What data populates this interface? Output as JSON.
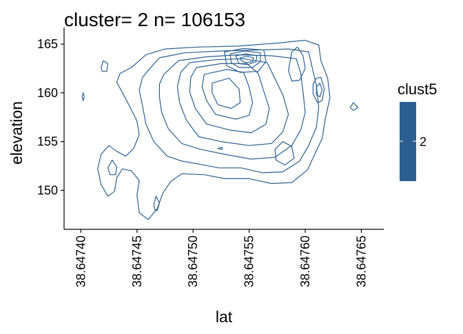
{
  "chart_data": {
    "type": "contour",
    "title": "cluster= 2 n= 106153",
    "xlabel": "lat",
    "ylabel": "elevation",
    "xlim": [
      38.647385,
      38.64767
    ],
    "ylim": [
      146,
      166.7
    ],
    "x_ticks": [
      "38.64740",
      "38.64745",
      "38.64750",
      "38.64755",
      "38.64760",
      "38.64765"
    ],
    "y_ticks": [
      "150",
      "155",
      "160",
      "165"
    ],
    "grid": false,
    "line_color": "#2b5f8f",
    "legend": {
      "title": "clust5",
      "label": "2",
      "color": "#2b5f8f",
      "position": "right"
    },
    "contours": [
      {
        "name": "outer-main",
        "points": [
          [
            38.647445,
            162.6
          ],
          [
            38.647458,
            163.9
          ],
          [
            38.647475,
            164.5
          ],
          [
            38.647505,
            164.7
          ],
          [
            38.64754,
            164.8
          ],
          [
            38.647575,
            165.1
          ],
          [
            38.6476,
            165.4
          ],
          [
            38.647612,
            164.9
          ],
          [
            38.647614,
            163.3
          ],
          [
            38.64762,
            161.5
          ],
          [
            38.647622,
            159.5
          ],
          [
            38.647618,
            157.4
          ],
          [
            38.647615,
            155.3
          ],
          [
            38.647608,
            153.6
          ],
          [
            38.647602,
            152.1
          ],
          [
            38.647588,
            150.8
          ],
          [
            38.64757,
            150.7
          ],
          [
            38.64755,
            151.2
          ],
          [
            38.647528,
            151.2
          ],
          [
            38.64751,
            151.6
          ],
          [
            38.64749,
            151.7
          ],
          [
            38.64748,
            150.9
          ],
          [
            38.647473,
            149.7
          ],
          [
            38.647468,
            148.1
          ],
          [
            38.64746,
            147.0
          ],
          [
            38.647452,
            147.7
          ],
          [
            38.64745,
            149.5
          ],
          [
            38.647452,
            151.0
          ],
          [
            38.647445,
            152.0
          ],
          [
            38.647437,
            152.2
          ],
          [
            38.647432,
            151.3
          ],
          [
            38.64743,
            149.9
          ],
          [
            38.647424,
            149.4
          ],
          [
            38.647418,
            150.6
          ],
          [
            38.647415,
            152.2
          ],
          [
            38.647418,
            153.7
          ],
          [
            38.647425,
            154.6
          ],
          [
            38.647432,
            154.0
          ],
          [
            38.64744,
            153.5
          ],
          [
            38.647447,
            154.3
          ],
          [
            38.647452,
            155.7
          ],
          [
            38.64745,
            157.1
          ],
          [
            38.647444,
            158.5
          ],
          [
            38.647438,
            159.8
          ],
          [
            38.647432,
            161.1
          ],
          [
            38.647435,
            162.0
          ]
        ]
      },
      {
        "name": "ring-2",
        "points": [
          [
            38.64746,
            162.3
          ],
          [
            38.64747,
            163.6
          ],
          [
            38.647492,
            164.1
          ],
          [
            38.647525,
            164.3
          ],
          [
            38.647558,
            164.4
          ],
          [
            38.647585,
            164.5
          ],
          [
            38.647603,
            164.2
          ],
          [
            38.647606,
            162.7
          ],
          [
            38.64761,
            160.7
          ],
          [
            38.647612,
            158.5
          ],
          [
            38.64761,
            156.5
          ],
          [
            38.647603,
            154.6
          ],
          [
            38.647595,
            153.0
          ],
          [
            38.64758,
            151.9
          ],
          [
            38.647562,
            151.8
          ],
          [
            38.647543,
            152.3
          ],
          [
            38.647523,
            152.3
          ],
          [
            38.647505,
            152.7
          ],
          [
            38.64749,
            153.0
          ],
          [
            38.647477,
            153.5
          ],
          [
            38.647465,
            155.0
          ],
          [
            38.647458,
            156.8
          ],
          [
            38.647455,
            158.6
          ],
          [
            38.647452,
            160.3
          ],
          [
            38.647455,
            161.6
          ]
        ]
      },
      {
        "name": "ring-3",
        "points": [
          [
            38.647474,
            161.9
          ],
          [
            38.647487,
            163.3
          ],
          [
            38.647512,
            163.7
          ],
          [
            38.64754,
            163.9
          ],
          [
            38.64757,
            163.8
          ],
          [
            38.647592,
            163.5
          ],
          [
            38.647596,
            162.0
          ],
          [
            38.647598,
            160.1
          ],
          [
            38.6476,
            158.0
          ],
          [
            38.647596,
            156.2
          ],
          [
            38.647588,
            154.6
          ],
          [
            38.647573,
            153.4
          ],
          [
            38.647552,
            153.2
          ],
          [
            38.647528,
            153.7
          ],
          [
            38.647507,
            154.2
          ],
          [
            38.64749,
            154.8
          ],
          [
            38.647478,
            156.3
          ],
          [
            38.647472,
            158.0
          ],
          [
            38.64747,
            159.6
          ],
          [
            38.64747,
            160.9
          ]
        ]
      },
      {
        "name": "ring-4",
        "points": [
          [
            38.647497,
            163.1
          ],
          [
            38.64752,
            163.4
          ],
          [
            38.647545,
            163.5
          ],
          [
            38.647566,
            163.1
          ],
          [
            38.647572,
            161.7
          ],
          [
            38.64758,
            159.8
          ],
          [
            38.647585,
            157.8
          ],
          [
            38.64758,
            156.0
          ],
          [
            38.64757,
            154.8
          ],
          [
            38.64755,
            154.6
          ],
          [
            38.647525,
            155.0
          ],
          [
            38.647505,
            155.5
          ],
          [
            38.647494,
            157.2
          ],
          [
            38.647488,
            159.0
          ],
          [
            38.647486,
            160.6
          ],
          [
            38.647489,
            162.1
          ]
        ]
      },
      {
        "name": "ring-5",
        "points": [
          [
            38.647503,
            162.6
          ],
          [
            38.647525,
            163.0
          ],
          [
            38.647548,
            163.0
          ],
          [
            38.647558,
            162.0
          ],
          [
            38.647563,
            160.2
          ],
          [
            38.647568,
            158.4
          ],
          [
            38.647565,
            156.8
          ],
          [
            38.647552,
            155.9
          ],
          [
            38.647532,
            156.2
          ],
          [
            38.647512,
            156.8
          ],
          [
            38.647502,
            158.4
          ],
          [
            38.647497,
            160.1
          ],
          [
            38.647498,
            161.6
          ]
        ]
      },
      {
        "name": "ring-6",
        "points": [
          [
            38.64751,
            161.9
          ],
          [
            38.64753,
            162.4
          ],
          [
            38.647545,
            162.1
          ],
          [
            38.64755,
            160.6
          ],
          [
            38.647553,
            159.0
          ],
          [
            38.64755,
            157.7
          ],
          [
            38.647538,
            157.3
          ],
          [
            38.64752,
            157.8
          ],
          [
            38.647512,
            159.2
          ],
          [
            38.647508,
            160.6
          ]
        ]
      },
      {
        "name": "ring-7",
        "points": [
          [
            38.647517,
            161.0
          ],
          [
            38.647532,
            161.5
          ],
          [
            38.647541,
            160.4
          ],
          [
            38.647542,
            159.0
          ],
          [
            38.647534,
            158.4
          ],
          [
            38.647522,
            158.8
          ],
          [
            38.647517,
            160.0
          ]
        ]
      },
      {
        "name": "peak-1",
        "points": [
          [
            38.647528,
            164.2
          ],
          [
            38.647545,
            164.55
          ],
          [
            38.647563,
            164.4
          ],
          [
            38.647565,
            163.2
          ],
          [
            38.647558,
            162.2
          ],
          [
            38.647542,
            162.1
          ],
          [
            38.64753,
            162.8
          ]
        ]
      },
      {
        "name": "peak-2",
        "points": [
          [
            38.647533,
            164.0
          ],
          [
            38.647546,
            164.3
          ],
          [
            38.64756,
            164.1
          ],
          [
            38.64756,
            163.2
          ],
          [
            38.647553,
            162.6
          ],
          [
            38.647541,
            162.6
          ],
          [
            38.647534,
            163.1
          ]
        ]
      },
      {
        "name": "peak-3",
        "points": [
          [
            38.647538,
            163.8
          ],
          [
            38.647547,
            164.0
          ],
          [
            38.647557,
            163.8
          ],
          [
            38.647556,
            163.2
          ],
          [
            38.647549,
            162.9
          ],
          [
            38.647541,
            163.0
          ]
        ]
      },
      {
        "name": "peak-4",
        "points": [
          [
            38.647542,
            163.6
          ],
          [
            38.647548,
            163.75
          ],
          [
            38.647554,
            163.6
          ],
          [
            38.647553,
            163.2
          ],
          [
            38.647547,
            163.1
          ],
          [
            38.647543,
            163.3
          ]
        ]
      },
      {
        "name": "right-blob",
        "points": [
          [
            38.647607,
            160.9
          ],
          [
            38.64761,
            161.5
          ],
          [
            38.647614,
            161.6
          ],
          [
            38.647617,
            160.4
          ],
          [
            38.647615,
            159.2
          ],
          [
            38.647611,
            159.0
          ],
          [
            38.647607,
            159.9
          ]
        ]
      },
      {
        "name": "right-blob-inner",
        "points": [
          [
            38.64761,
            160.6
          ],
          [
            38.647613,
            161.0
          ],
          [
            38.647615,
            160.3
          ],
          [
            38.647613,
            159.6
          ],
          [
            38.64761,
            159.8
          ]
        ]
      },
      {
        "name": "upper-right-blob",
        "points": [
          [
            38.647585,
            162.3
          ],
          [
            38.647588,
            164.2
          ],
          [
            38.647593,
            164.7
          ],
          [
            38.647598,
            163.8
          ],
          [
            38.6476,
            162.5
          ],
          [
            38.647595,
            161.3
          ],
          [
            38.647588,
            161.2
          ]
        ]
      },
      {
        "name": "lower-right-blob",
        "points": [
          [
            38.647573,
            154.2
          ],
          [
            38.64758,
            155.0
          ],
          [
            38.647588,
            154.5
          ],
          [
            38.64759,
            153.3
          ],
          [
            38.647582,
            152.6
          ],
          [
            38.647574,
            153.1
          ]
        ]
      },
      {
        "name": "left-lower-blob",
        "points": [
          [
            38.647424,
            152.3
          ],
          [
            38.647428,
            153.1
          ],
          [
            38.647432,
            152.4
          ],
          [
            38.647431,
            151.6
          ],
          [
            38.647426,
            151.6
          ]
        ]
      },
      {
        "name": "left-upper-blob",
        "points": [
          [
            38.647418,
            162.6
          ],
          [
            38.64742,
            163.3
          ],
          [
            38.647424,
            163.0
          ],
          [
            38.647423,
            162.2
          ],
          [
            38.647419,
            162.2
          ]
        ]
      },
      {
        "name": "far-left-dot",
        "points": [
          [
            38.647401,
            159.6
          ],
          [
            38.647402,
            160.0
          ],
          [
            38.647403,
            159.6
          ],
          [
            38.647402,
            159.2
          ]
        ]
      },
      {
        "name": "far-right-dot",
        "points": [
          [
            38.64764,
            158.5
          ],
          [
            38.647643,
            159.0
          ],
          [
            38.647647,
            158.5
          ],
          [
            38.647643,
            158.2
          ]
        ]
      },
      {
        "name": "bottom-left-blob",
        "points": [
          [
            38.647465,
            148.5
          ],
          [
            38.647467,
            149.4
          ],
          [
            38.64747,
            148.7
          ],
          [
            38.647468,
            147.9
          ],
          [
            38.647466,
            148.0
          ]
        ]
      },
      {
        "name": "center-dot",
        "points": [
          [
            38.647522,
            154.3
          ],
          [
            38.647526,
            154.4
          ],
          [
            38.647526,
            154.2
          ]
        ]
      }
    ]
  }
}
